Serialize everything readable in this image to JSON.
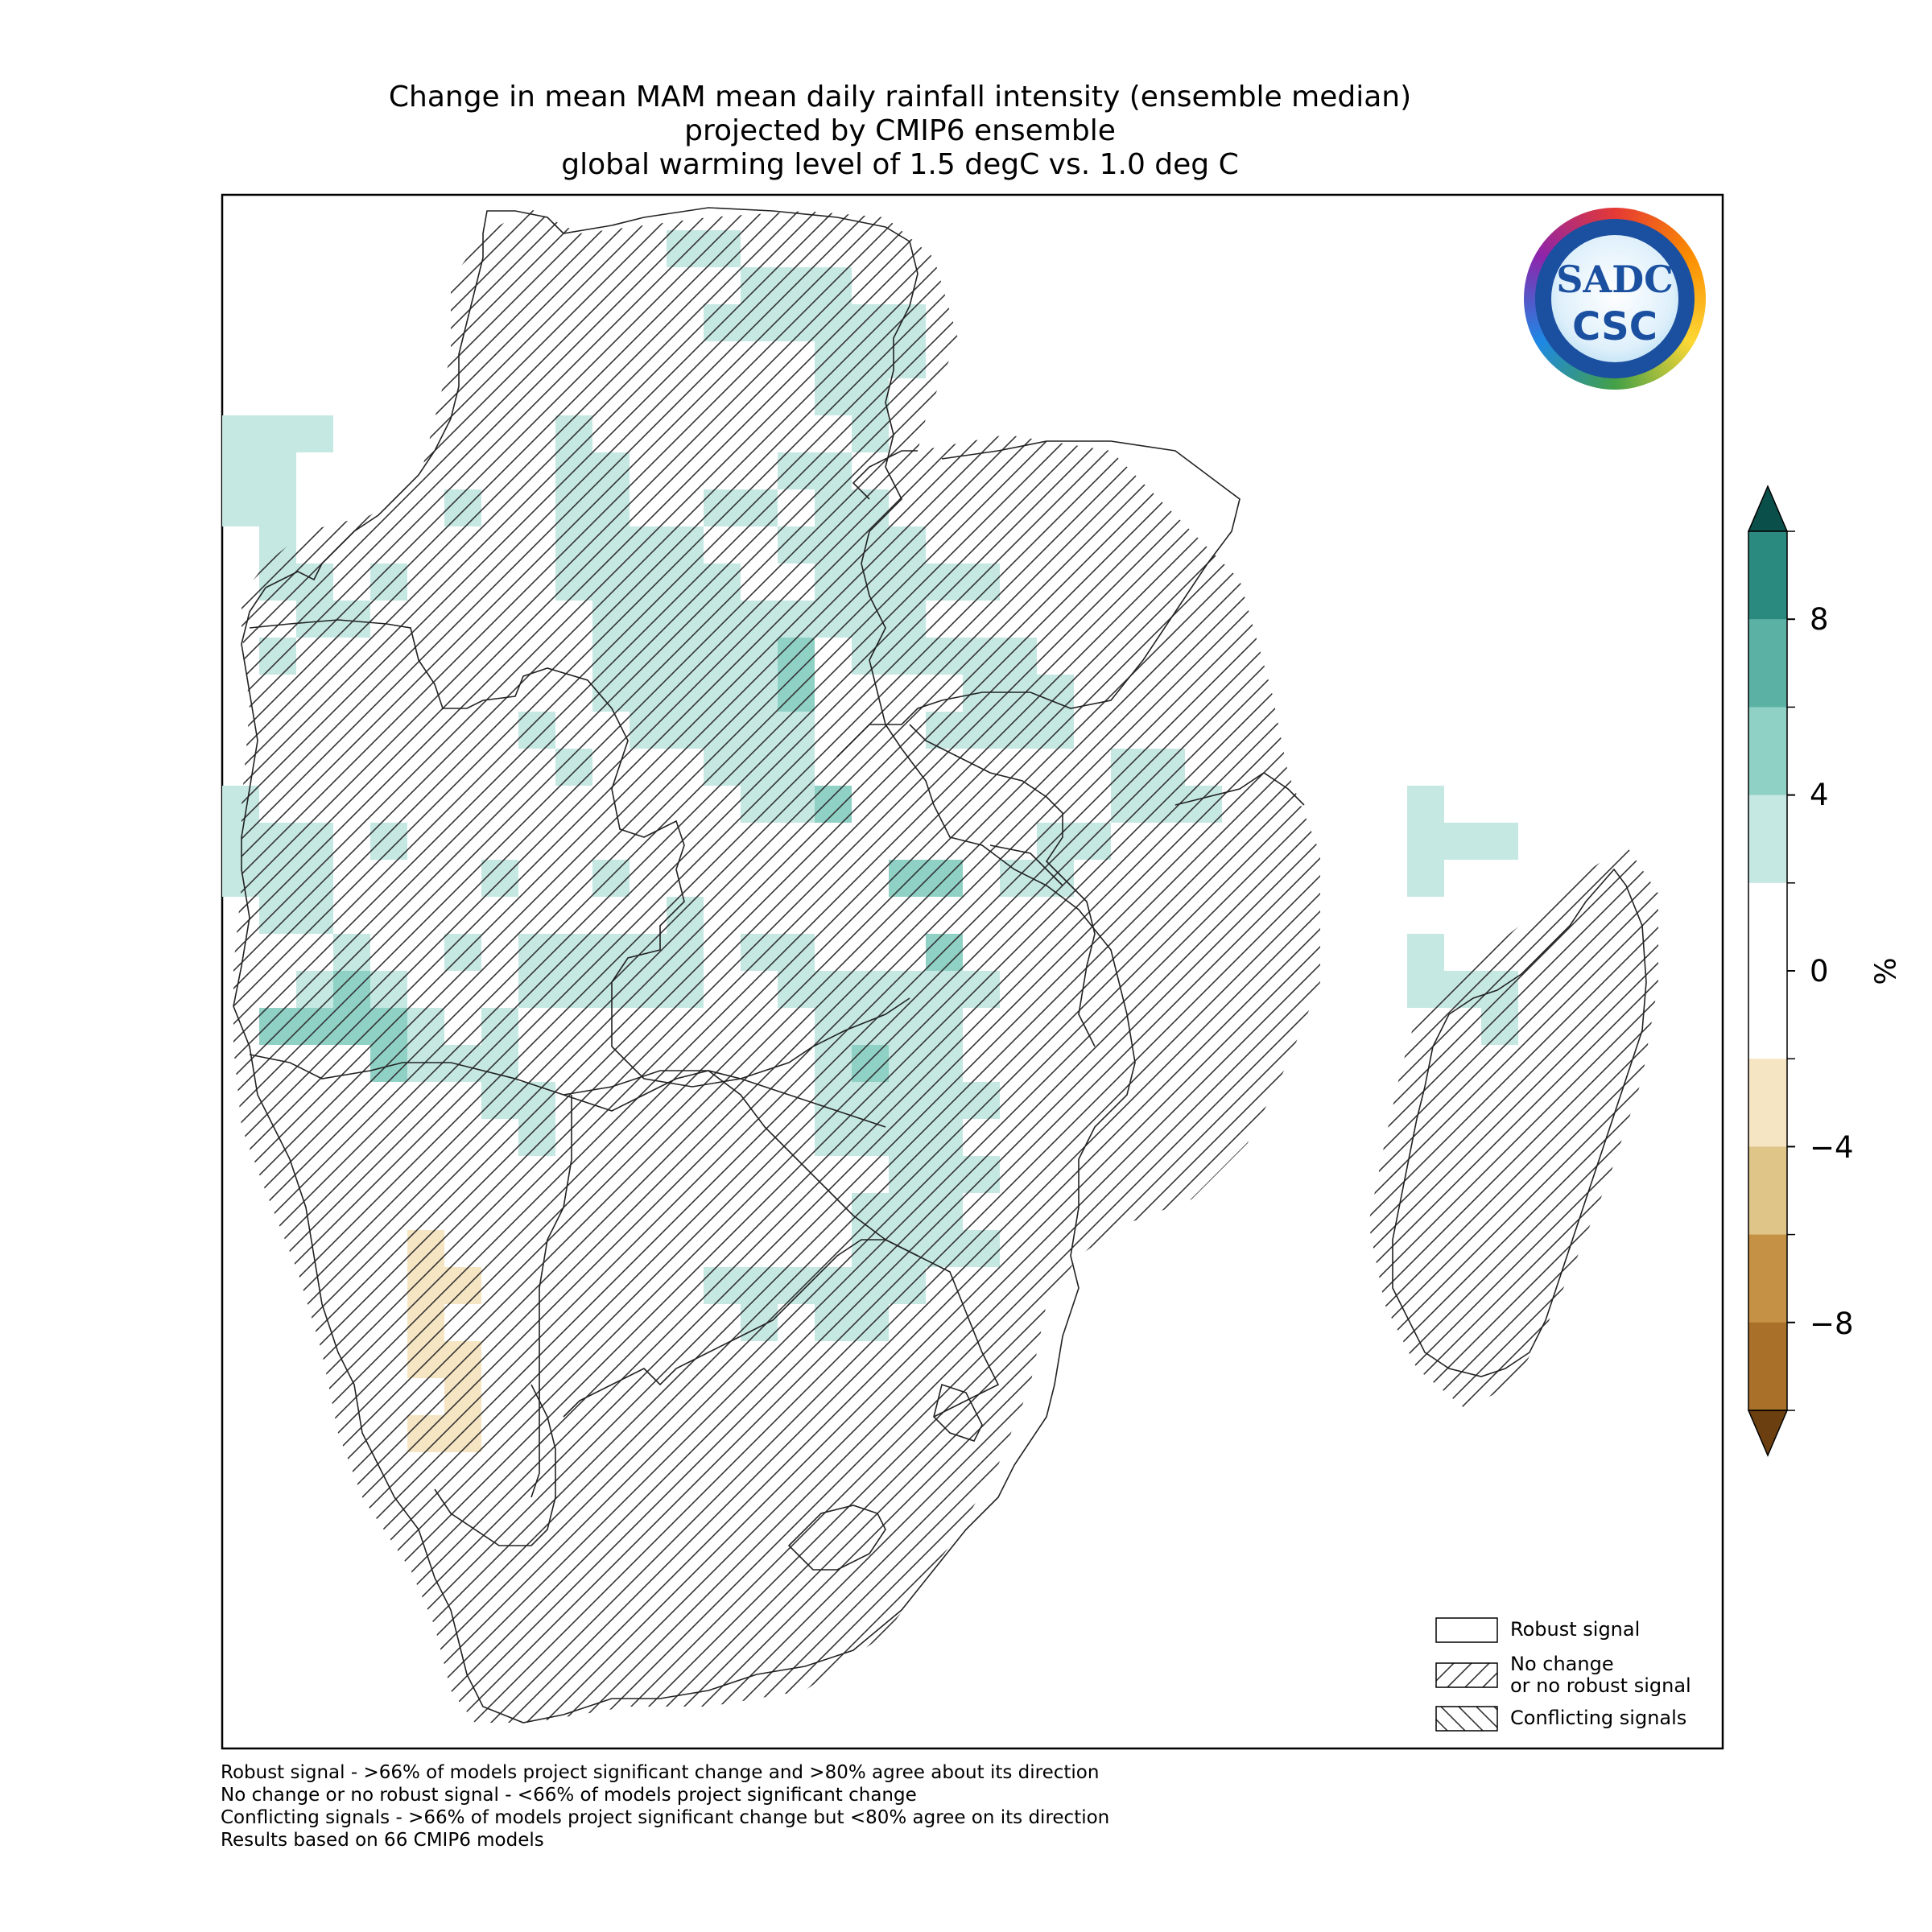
{
  "title": {
    "line1": "Change in mean MAM mean daily rainfall intensity (ensemble median)",
    "line2": "projected by CMIP6 ensemble",
    "line3": "global warming level of 1.5 degC vs. 1.0 deg C"
  },
  "legend": {
    "robust": "Robust signal",
    "no_change_1": "No change",
    "no_change_2": "or no robust signal",
    "conflicting": "Conflicting signals"
  },
  "colorbar": {
    "unit": "%",
    "ticks": [
      "8",
      "4",
      "0",
      "−4",
      "−8"
    ],
    "tick_values": [
      8,
      4,
      0,
      -4,
      -8
    ],
    "range": [
      -10,
      10
    ],
    "colors": {
      "above_10": "#0b4f4a",
      "8_10": "#2b8a80",
      "6_8": "#5cb1a5",
      "4_6": "#8fd1c5",
      "2_4": "#c5e8e3",
      "-2_2": "#ffffff",
      "-4_-2": "#f6e5c3",
      "-6_-4": "#dfc588",
      "-8_-6": "#c59144",
      "-10_-8": "#a9702a",
      "below_-10": "#6b3f0f"
    }
  },
  "footnotes": [
    "Robust signal - >66% of models project significant change and >80% agree about its direction",
    "No change or no robust signal - <66% of models project significant change",
    "Conflicting signals - >66% of models project significant change but <80% agree on its direction",
    "Results based on 66 CMIP6 models"
  ],
  "logo": {
    "text_top": "SADC",
    "text_bottom": "CSC"
  },
  "map_data": {
    "type": "gridded-change-map",
    "region": "Southern Africa",
    "cells_2_to_4_percent": "scattered across central-north, west coast, east coast and Madagascar",
    "cells_4_to_6_percent": "north-central interior and western coast",
    "cells_minus_2_to_minus_4_percent": "south-west coast"
  }
}
